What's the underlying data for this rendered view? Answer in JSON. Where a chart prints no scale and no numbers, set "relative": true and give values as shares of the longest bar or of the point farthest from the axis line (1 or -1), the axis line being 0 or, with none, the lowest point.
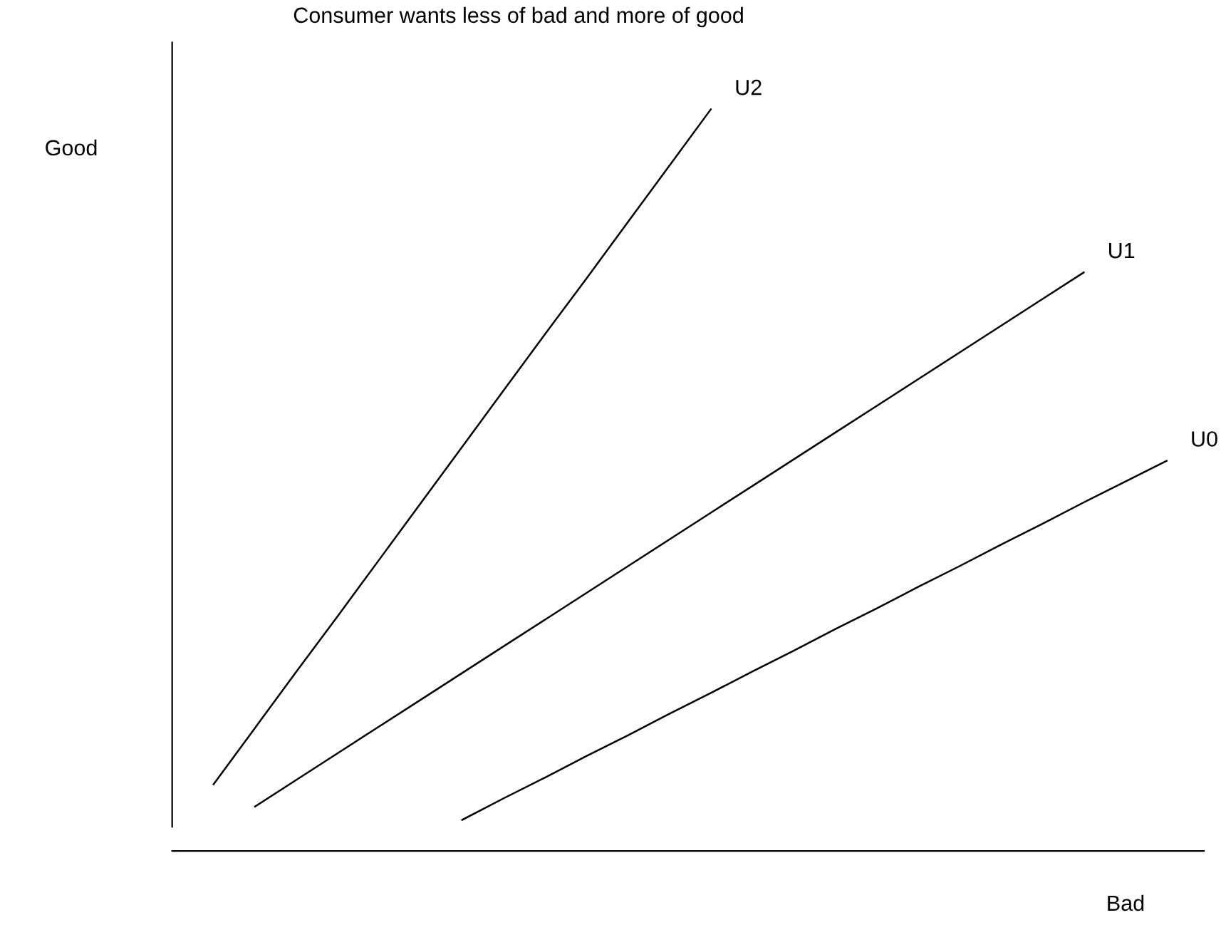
{
  "chart_data": {
    "type": "line",
    "title": "Consumer wants less of bad and more of good",
    "xlabel": "Bad",
    "ylabel": "Good",
    "relative": true,
    "legend": false,
    "marker": "none",
    "line_style": "solid",
    "categories": [
      null,
      null,
      null,
      null,
      null,
      null,
      null,
      null,
      null,
      null,
      null,
      null,
      null,
      null,
      null,
      null,
      null,
      null,
      null,
      null,
      null,
      null,
      null,
      null
    ],
    "series": [
      {
        "name": "U2",
        "color": "#000000",
        "values": [
          0.09,
          0.166,
          0.242,
          0.317,
          0.393,
          0.469,
          0.545,
          0.621,
          0.697,
          0.772,
          0.848,
          0.924,
          1.0,
          null,
          null,
          null,
          null,
          null,
          null,
          null,
          null,
          null,
          null,
          null
        ]
      },
      {
        "name": "U1",
        "color": "#000000",
        "values": [
          null,
          0.06,
          0.096,
          0.132,
          0.168,
          0.204,
          0.24,
          0.276,
          0.312,
          0.348,
          0.384,
          0.42,
          0.456,
          0.492,
          0.528,
          0.564,
          0.6,
          0.636,
          0.672,
          0.708,
          0.744,
          0.78,
          null,
          null
        ]
      },
      {
        "name": "U0",
        "color": "#000000",
        "values": [
          null,
          null,
          null,
          null,
          null,
          null,
          0.042,
          0.071,
          0.099,
          0.128,
          0.156,
          0.185,
          0.213,
          0.242,
          0.27,
          0.299,
          0.327,
          0.356,
          0.384,
          0.413,
          0.441,
          0.47,
          0.498,
          0.526
        ]
      }
    ]
  }
}
